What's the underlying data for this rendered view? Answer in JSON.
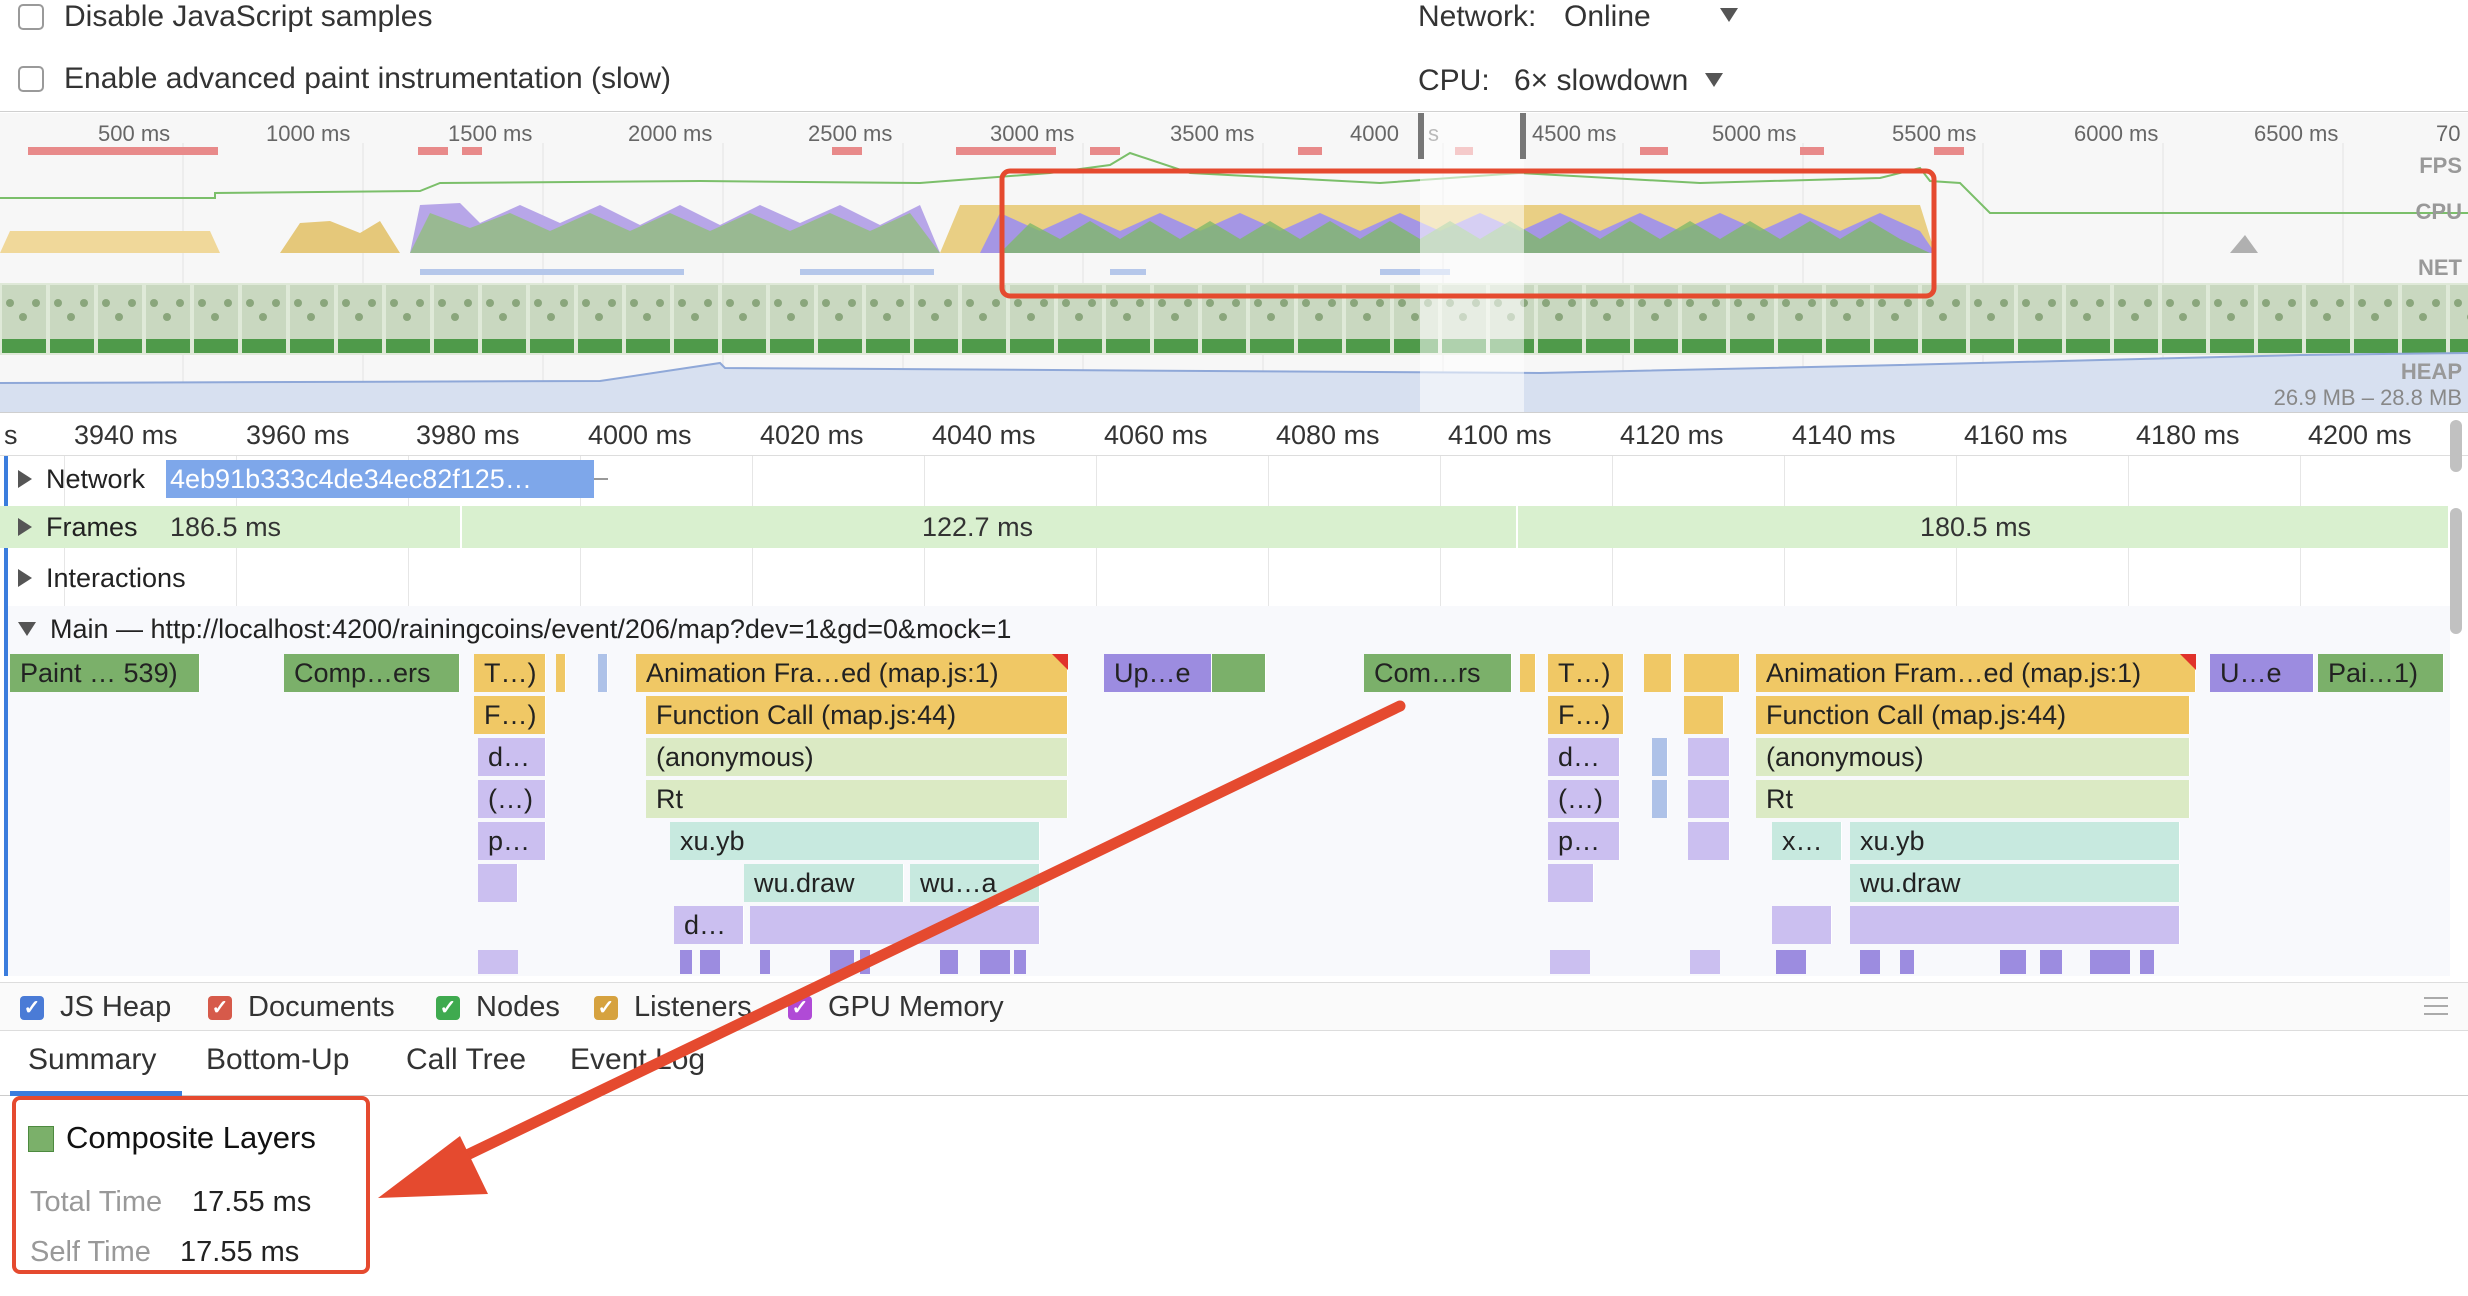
{
  "settings": {
    "disable_js_samples": "Disable JavaScript samples",
    "advanced_paint": "Enable advanced paint instrumentation (slow)",
    "network_label": "Network:",
    "network_value": "Online",
    "cpu_label": "CPU:",
    "cpu_value": "6× slowdown"
  },
  "overview": {
    "ticks": [
      "500 ms",
      "1000 ms",
      "1500 ms",
      "2000 ms",
      "2500 ms",
      "3000 ms",
      "3500 ms",
      "4000",
      "s",
      "4500 ms",
      "5000 ms",
      "5500 ms",
      "6000 ms",
      "6500 ms",
      "70"
    ],
    "labels": {
      "fps": "FPS",
      "cpu": "CPU",
      "net": "NET",
      "heap": "HEAP"
    },
    "heap_range": "26.9 MB – 28.8 MB"
  },
  "ruler": {
    "ticks": [
      "s",
      "3940 ms",
      "3960 ms",
      "3980 ms",
      "4000 ms",
      "4020 ms",
      "4040 ms",
      "4060 ms",
      "4080 ms",
      "4100 ms",
      "4120 ms",
      "4140 ms",
      "4160 ms",
      "4180 ms",
      "4200 ms"
    ]
  },
  "tracks": {
    "network_label": "Network",
    "network_request": "4eb91b333c4de34ec82f125…",
    "frames_label": "Frames",
    "frames": [
      "186.5 ms",
      "122.7 ms",
      "180.5 ms"
    ],
    "interactions_label": "Interactions",
    "main_label": "Main — http://localhost:4200/rainingcoins/event/206/map?dev=1&gd=0&mock=1"
  },
  "flame": {
    "row1": [
      "Paint … 539)",
      "Comp…ers",
      "T…)",
      "Animation Fra…ed (map.js:1)",
      "Up…e",
      "Com…rs",
      "T…)",
      "Animation Fram…ed (map.js:1)",
      "U…e",
      "Pai…1)"
    ],
    "row2": [
      "F…)",
      "Function Call (map.js:44)",
      "F…)",
      "Function Call (map.js:44)"
    ],
    "row3": [
      "d…",
      "(anonymous)",
      "d…",
      "(anonymous)"
    ],
    "row4": [
      "(…)",
      "Rt",
      "(…)",
      "Rt"
    ],
    "row5": [
      "p…",
      "xu.yb",
      "p…",
      "x…",
      "xu.yb"
    ],
    "row6": [
      "wu.draw",
      "wu…a",
      "wu.draw"
    ],
    "row7": [
      "d…"
    ]
  },
  "memory": [
    "JS Heap",
    "Documents",
    "Nodes",
    "Listeners",
    "GPU Memory"
  ],
  "memory_colors": [
    "#4a7bd6",
    "#d65a4a",
    "#3faa4f",
    "#d6a23f",
    "#b04ad6"
  ],
  "tabs": [
    "Summary",
    "Bottom-Up",
    "Call Tree",
    "Event Log"
  ],
  "summary": {
    "title": "Composite Layers",
    "total_time_label": "Total Time",
    "total_time": "17.55 ms",
    "self_time_label": "Self Time",
    "self_time": "17.55 ms"
  },
  "colors": {
    "annotation": "#e54a2f",
    "composite": "#7bb06a",
    "tab_active": "#3b7ddd"
  }
}
